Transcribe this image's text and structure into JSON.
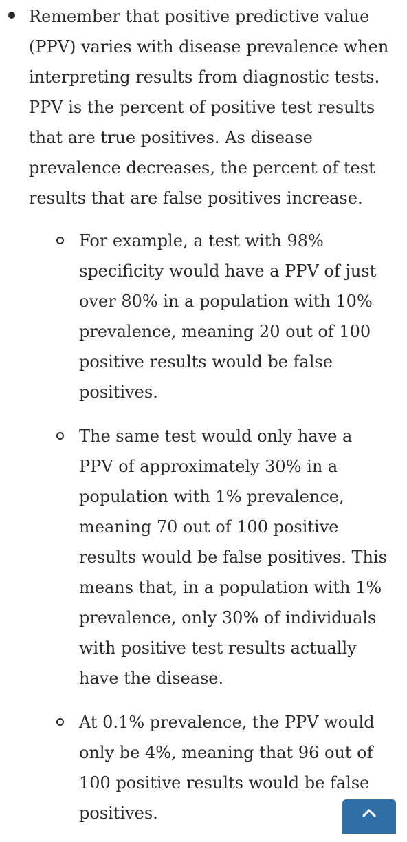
{
  "main_bullet": {
    "text": "Remember that positive predictive value (PPV) varies with disease prevalence when interpreting results from diagnostic tests. PPV is the percent of positive test results that are true positives. As disease prevalence decreases, the percent of test results that are false positives increase."
  },
  "sub_bullets": [
    {
      "text": "For example, a test with 98% specificity would have a PPV of just over 80% in a population with 10% prevalence, meaning 20 out of 100 positive results would be false positives."
    },
    {
      "text": "The same test would only have a PPV of approximately 30% in a population with 1% prevalence, meaning 70 out of 100 positive results would be false positives. This means that, in a population with 1% prevalence, only 30% of individuals with positive test results actually have the disease."
    },
    {
      "text": "At 0.1% prevalence, the PPV would only be 4%, meaning that 96 out of 100 positive results would be false positives."
    }
  ],
  "back_to_top": {
    "icon": "chevron-up-icon",
    "color": "#2e6fa7"
  }
}
